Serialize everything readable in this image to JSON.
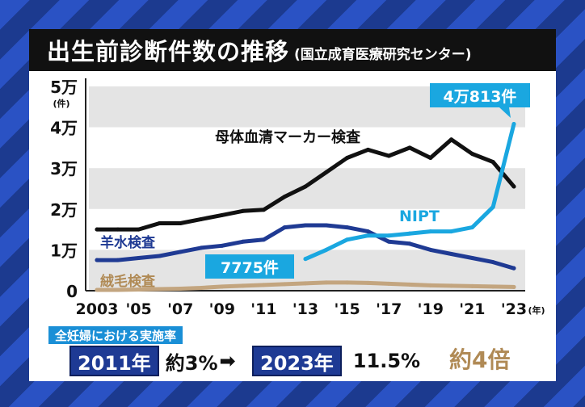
{
  "header": {
    "title": "出生前診断件数の推移",
    "source": "(国立成育医療研究センター)"
  },
  "chart_data": {
    "type": "line",
    "x": [
      2003,
      2004,
      2005,
      2006,
      2007,
      2008,
      2009,
      2010,
      2011,
      2012,
      2013,
      2014,
      2015,
      2016,
      2017,
      2018,
      2019,
      2020,
      2021,
      2022,
      2023
    ],
    "x_tick_labels": [
      "2003",
      "'05",
      "'07",
      "'09",
      "'11",
      "'13",
      "'15",
      "'17",
      "'19",
      "'21",
      "'23"
    ],
    "x_unit": "(年)",
    "y_tick_labels": [
      "0",
      "1万",
      "2万",
      "3万",
      "4万",
      "5万"
    ],
    "y_unit": "(件)",
    "ylim": [
      0,
      50000
    ],
    "grid": "horizontal bands",
    "series": [
      {
        "name": "母体血清マーカー検査",
        "color": "#111111",
        "values": [
          15000,
          15000,
          15000,
          16500,
          16500,
          17500,
          18500,
          19500,
          19800,
          23000,
          25500,
          29000,
          32500,
          34500,
          33000,
          35000,
          32500,
          37000,
          33500,
          31500,
          25500
        ]
      },
      {
        "name": "羊水検査",
        "color": "#1f3a93",
        "values": [
          7500,
          7500,
          8000,
          8500,
          9500,
          10500,
          11000,
          12000,
          12500,
          15500,
          16000,
          16000,
          15500,
          14500,
          12000,
          11500,
          10000,
          9000,
          8000,
          7000,
          5500
        ]
      },
      {
        "name": "絨毛検査",
        "color": "#c3a57f",
        "values": [
          200,
          200,
          300,
          400,
          500,
          700,
          1000,
          1200,
          1400,
          1600,
          1800,
          2000,
          2000,
          1900,
          1700,
          1500,
          1300,
          1200,
          1100,
          1000,
          900
        ]
      },
      {
        "name": "NIPT",
        "color": "#1aa7e0",
        "x": [
          2013,
          2014,
          2015,
          2016,
          2017,
          2018,
          2019,
          2020,
          2021,
          2022,
          2023
        ],
        "values": [
          7775,
          10000,
          12500,
          13500,
          13500,
          14000,
          14500,
          14500,
          15500,
          20500,
          40813
        ]
      }
    ],
    "annotations": {
      "nipt_2023": "4万813件",
      "nipt_2013": "7775件"
    }
  },
  "summary": {
    "label": "全妊婦における実施率",
    "year_start": "2011年",
    "rate_start": "約3%",
    "year_end": "2023年",
    "rate_end": "11.5%",
    "factor": "約4倍"
  }
}
